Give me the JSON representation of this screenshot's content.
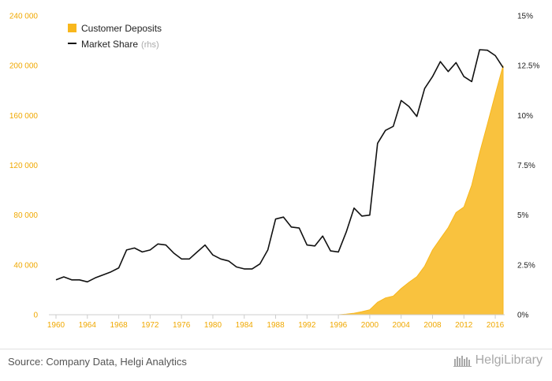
{
  "chart_data": {
    "type": "area",
    "x": [
      1960,
      1961,
      1962,
      1963,
      1964,
      1965,
      1966,
      1967,
      1968,
      1969,
      1970,
      1971,
      1972,
      1973,
      1974,
      1975,
      1976,
      1977,
      1978,
      1979,
      1980,
      1981,
      1982,
      1983,
      1984,
      1985,
      1986,
      1987,
      1988,
      1989,
      1990,
      1991,
      1992,
      1993,
      1994,
      1995,
      1996,
      1997,
      1998,
      1999,
      2000,
      2001,
      2002,
      2003,
      2004,
      2005,
      2006,
      2007,
      2008,
      2009,
      2010,
      2011,
      2012,
      2013,
      2014,
      2015,
      2016,
      2017
    ],
    "series": [
      {
        "name": "Customer Deposits",
        "axis": "left",
        "color": "#f8b71c",
        "values": [
          0,
          0,
          0,
          0,
          0,
          0,
          0,
          0,
          0,
          0,
          0,
          0,
          0,
          0,
          0,
          0,
          0,
          0,
          0,
          0,
          0,
          0,
          0,
          0,
          0,
          0,
          0,
          0,
          0,
          0,
          0,
          0,
          0,
          0,
          0,
          0,
          0,
          500,
          1200,
          2500,
          4000,
          10000,
          13500,
          15000,
          21000,
          26000,
          30500,
          39000,
          52000,
          61000,
          70000,
          82000,
          86500,
          104000,
          130000,
          153000,
          177000,
          200000
        ]
      },
      {
        "name": "Market Share",
        "label_suffix": "(rhs)",
        "axis": "right",
        "color": "#111111",
        "values": [
          1.75,
          1.9,
          1.75,
          1.75,
          1.65,
          1.85,
          2.0,
          2.15,
          2.35,
          3.25,
          3.35,
          3.15,
          3.25,
          3.55,
          3.5,
          3.1,
          2.8,
          2.8,
          3.15,
          3.5,
          3.0,
          2.8,
          2.7,
          2.4,
          2.3,
          2.3,
          2.55,
          3.25,
          4.8,
          4.9,
          4.4,
          4.35,
          3.5,
          3.45,
          3.95,
          3.2,
          3.15,
          4.15,
          5.35,
          4.95,
          5.0,
          8.6,
          9.25,
          9.45,
          10.75,
          10.45,
          9.95,
          11.35,
          11.95,
          12.7,
          12.2,
          12.65,
          11.95,
          11.7,
          13.3,
          13.27,
          13.0,
          12.4
        ]
      }
    ],
    "x_ticks": [
      "1960",
      "1964",
      "1968",
      "1972",
      "1976",
      "1980",
      "1984",
      "1988",
      "1992",
      "1996",
      "2000",
      "2004",
      "2008",
      "2012",
      "2016"
    ],
    "y_left_ticks": [
      "0",
      "40 000",
      "80 000",
      "120 000",
      "160 000",
      "200 000",
      "240 000"
    ],
    "y_right_ticks": [
      "0%",
      "2.5%",
      "5%",
      "7.5%",
      "10%",
      "12.5%",
      "15%"
    ],
    "ylim_left": [
      0,
      240000
    ],
    "ylim_right": [
      0,
      15
    ],
    "grid": false,
    "legend_position": "top-left"
  },
  "footer": {
    "source": "Source: Company Data, Helgi Analytics",
    "logo_text": "HelgiLibrary"
  }
}
